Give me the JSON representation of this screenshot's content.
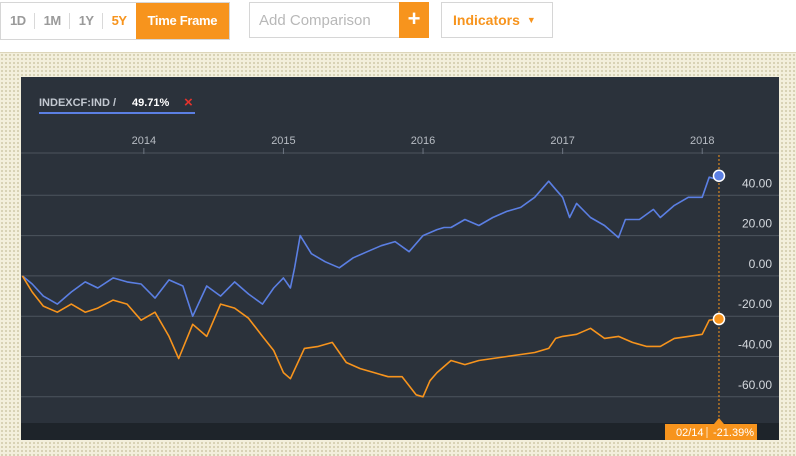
{
  "toolbar": {
    "ranges": [
      "1D",
      "1M",
      "1Y",
      "5Y"
    ],
    "active_range": "5Y",
    "timeframe_label": "Time Frame",
    "comparison_placeholder": "Add Comparison",
    "add_symbol": "+",
    "indicators_label": "Indicators",
    "indicators_caret": "▼"
  },
  "legend": {
    "symbol": "INDEXCF:IND /",
    "value": "49.71%",
    "remove_symbol": "×"
  },
  "tooltip": {
    "date": "02/14",
    "value": "-21.39%"
  },
  "colors": {
    "panel": "#2b323b",
    "blue_series": "#5b7fe3",
    "orange_series": "#f7941d",
    "accent": "#f7941d",
    "remove": "#e4332d"
  },
  "chart_data": {
    "type": "line",
    "title": "",
    "xlabel": "",
    "ylabel": "",
    "x_ticks": [
      "2014",
      "2015",
      "2016",
      "2017",
      "2018"
    ],
    "y_ticks": [
      40,
      20,
      0,
      -20,
      -40,
      -60
    ],
    "y_tick_labels": [
      "40.00",
      "20.00",
      "0.00",
      "-20.00",
      "-40.00",
      "-60.00"
    ],
    "ylim": [
      -73,
      60
    ],
    "xlim": [
      2013.12,
      2018.55
    ],
    "cursor_x": 2018.12,
    "grid": true,
    "series": [
      {
        "name": "INDEXCF:IND",
        "color": "#5b7fe3",
        "x": [
          2013.13,
          2013.2,
          2013.28,
          2013.38,
          2013.48,
          2013.58,
          2013.67,
          2013.78,
          2013.88,
          2013.98,
          2014.08,
          2014.18,
          2014.28,
          2014.35,
          2014.45,
          2014.55,
          2014.65,
          2014.75,
          2014.85,
          2014.93,
          2015.0,
          2015.05,
          2015.08,
          2015.12,
          2015.2,
          2015.3,
          2015.4,
          2015.5,
          2015.6,
          2015.7,
          2015.8,
          2015.9,
          2016.0,
          2016.1,
          2016.15,
          2016.2,
          2016.3,
          2016.4,
          2016.5,
          2016.6,
          2016.7,
          2016.8,
          2016.9,
          2016.95,
          2017.0,
          2017.05,
          2017.1,
          2017.2,
          2017.3,
          2017.4,
          2017.45,
          2017.55,
          2017.65,
          2017.7,
          2017.8,
          2017.9,
          2018.0,
          2018.05,
          2018.1,
          2018.12
        ],
        "values": [
          0,
          -4,
          -10,
          -14,
          -8,
          -3,
          -6,
          -1,
          -3,
          -4,
          -11,
          -2,
          -5,
          -20,
          -5,
          -10,
          -3,
          -9,
          -14,
          -6,
          -1,
          -6,
          4,
          20,
          11,
          7,
          4,
          9,
          12,
          15,
          17,
          12,
          20,
          23,
          24,
          24,
          28,
          25,
          29,
          32,
          34,
          39,
          47,
          43,
          39,
          29,
          36,
          29,
          25,
          19,
          28,
          28,
          33,
          29,
          35,
          39,
          39,
          49,
          48,
          49.7
        ]
      },
      {
        "name": "",
        "color": "#f7941d",
        "x": [
          2013.13,
          2013.2,
          2013.28,
          2013.38,
          2013.48,
          2013.58,
          2013.67,
          2013.78,
          2013.88,
          2013.98,
          2014.08,
          2014.18,
          2014.25,
          2014.35,
          2014.45,
          2014.55,
          2014.65,
          2014.75,
          2014.85,
          2014.93,
          2015.0,
          2015.05,
          2015.15,
          2015.25,
          2015.35,
          2015.45,
          2015.55,
          2015.65,
          2015.75,
          2015.85,
          2015.95,
          2016.0,
          2016.05,
          2016.1,
          2016.2,
          2016.3,
          2016.4,
          2016.5,
          2016.6,
          2016.7,
          2016.8,
          2016.9,
          2016.95,
          2017.0,
          2017.1,
          2017.2,
          2017.3,
          2017.4,
          2017.5,
          2017.6,
          2017.7,
          2017.8,
          2017.9,
          2018.0,
          2018.05,
          2018.12
        ],
        "values": [
          0,
          -8,
          -15,
          -18,
          -14,
          -18,
          -16,
          -12,
          -14,
          -22,
          -18,
          -30,
          -41,
          -24,
          -30,
          -14,
          -16,
          -21,
          -30,
          -37,
          -48,
          -51,
          -36,
          -35,
          -33,
          -43,
          -46,
          -48,
          -50,
          -50,
          -59,
          -60,
          -52,
          -48,
          -42,
          -44,
          -42,
          -41,
          -40,
          -39,
          -38,
          -36,
          -31,
          -30,
          -29,
          -26,
          -31,
          -30,
          -33,
          -35,
          -35,
          -31,
          -30,
          -29,
          -22,
          -21.4
        ]
      }
    ]
  }
}
